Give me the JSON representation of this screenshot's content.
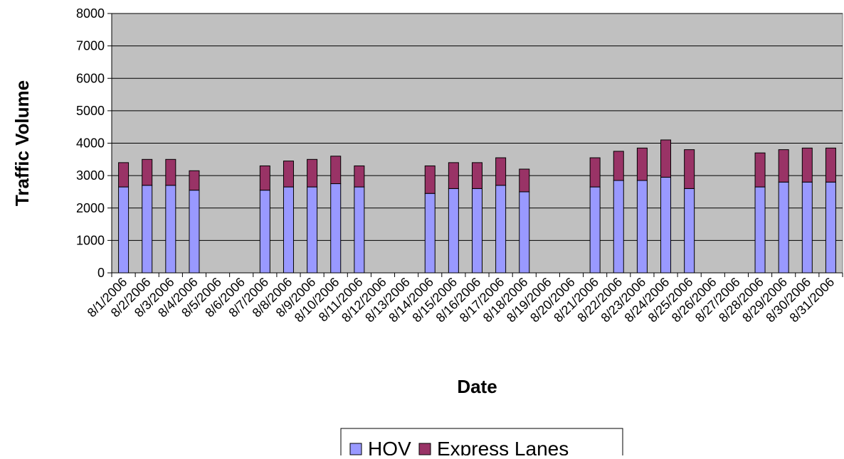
{
  "chart_data": {
    "type": "bar",
    "stacked": true,
    "title": "",
    "xlabel": "Date",
    "ylabel": "Traffic Volume",
    "ylim": [
      0,
      8000
    ],
    "yticks": [
      0,
      1000,
      2000,
      3000,
      4000,
      5000,
      6000,
      7000,
      8000
    ],
    "grid": true,
    "legend_position": "bottom",
    "categories": [
      "8/1/2006",
      "8/2/2006",
      "8/3/2006",
      "8/4/2006",
      "8/5/2006",
      "8/6/2006",
      "8/7/2006",
      "8/8/2006",
      "8/9/2006",
      "8/10/2006",
      "8/11/2006",
      "8/12/2006",
      "8/13/2006",
      "8/14/2006",
      "8/15/2006",
      "8/16/2006",
      "8/17/2006",
      "8/18/2006",
      "8/19/2006",
      "8/20/2006",
      "8/21/2006",
      "8/22/2006",
      "8/23/2006",
      "8/24/2006",
      "8/25/2006",
      "8/26/2006",
      "8/27/2006",
      "8/28/2006",
      "8/29/2006",
      "8/30/2006",
      "8/31/2006"
    ],
    "series": [
      {
        "name": "HOV",
        "color": "#9999ff",
        "values": [
          2650,
          2700,
          2700,
          2550,
          null,
          null,
          2550,
          2650,
          2650,
          2750,
          2650,
          null,
          null,
          2450,
          2600,
          2600,
          2700,
          2500,
          null,
          null,
          2650,
          2850,
          2850,
          2950,
          2600,
          null,
          null,
          2650,
          2800,
          2800,
          2800
        ]
      },
      {
        "name": "Express Lanes",
        "color": "#993366",
        "values": [
          750,
          800,
          800,
          600,
          null,
          null,
          750,
          800,
          850,
          850,
          650,
          null,
          null,
          850,
          800,
          800,
          850,
          700,
          null,
          null,
          900,
          900,
          1000,
          1150,
          1200,
          null,
          null,
          1050,
          1000,
          1050,
          1050
        ]
      }
    ]
  },
  "colors": {
    "plot_background": "#c0c0c0",
    "gridline": "#000000"
  }
}
